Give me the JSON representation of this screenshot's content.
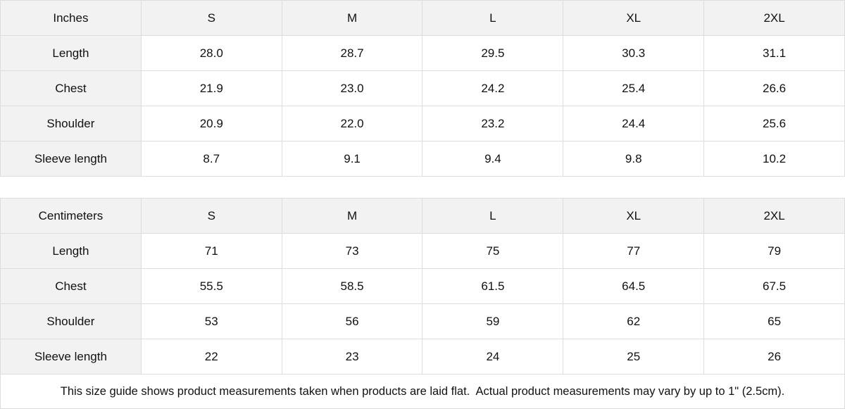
{
  "tables": [
    {
      "header": [
        "Inches",
        "S",
        "M",
        "L",
        "XL",
        "2XL"
      ],
      "rows": [
        [
          "Length",
          "28.0",
          "28.7",
          "29.5",
          "30.3",
          "31.1"
        ],
        [
          "Chest",
          "21.9",
          "23.0",
          "24.2",
          "25.4",
          "26.6"
        ],
        [
          "Shoulder",
          "20.9",
          "22.0",
          "23.2",
          "24.4",
          "25.6"
        ],
        [
          "Sleeve length",
          "8.7",
          "9.1",
          "9.4",
          "9.8",
          "10.2"
        ]
      ]
    },
    {
      "header": [
        "Centimeters",
        "S",
        "M",
        "L",
        "XL",
        "2XL"
      ],
      "rows": [
        [
          "Length",
          "71",
          "73",
          "75",
          "77",
          "79"
        ],
        [
          "Chest",
          "55.5",
          "58.5",
          "61.5",
          "64.5",
          "67.5"
        ],
        [
          "Shoulder",
          "53",
          "56",
          "59",
          "62",
          "65"
        ],
        [
          "Sleeve length",
          "22",
          "23",
          "24",
          "25",
          "26"
        ]
      ]
    }
  ],
  "note": "This size guide shows product measurements taken when products are laid flat.  Actual product measurements may vary by up to 1\" (2.5cm)."
}
